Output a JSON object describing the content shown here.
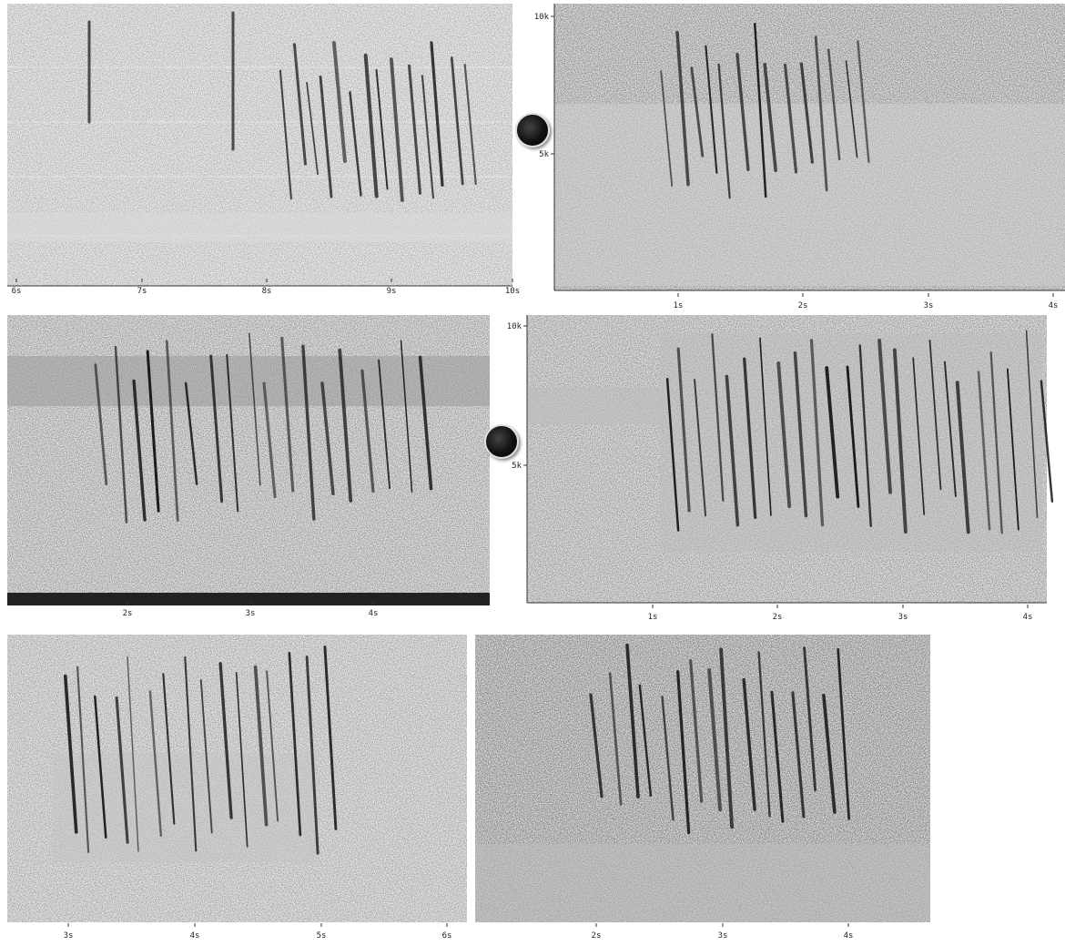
{
  "panels": [
    {
      "id": "p1",
      "x_ticks": [
        "6s",
        "7s",
        "8s",
        "9s",
        "10s"
      ],
      "y_ticks": []
    },
    {
      "id": "p2",
      "x_ticks": [
        "1s",
        "2s",
        "3s",
        "4s"
      ],
      "y_ticks": [
        "10k",
        "5k"
      ]
    },
    {
      "id": "p3",
      "x_ticks": [
        "2s",
        "3s",
        "4s"
      ],
      "y_ticks": []
    },
    {
      "id": "p4",
      "x_ticks": [
        "1s",
        "2s",
        "3s",
        "4s"
      ],
      "y_ticks": [
        "10k",
        "5k"
      ]
    },
    {
      "id": "p5",
      "x_ticks": [
        "3s",
        "4s",
        "5s",
        "6s"
      ],
      "y_ticks": []
    },
    {
      "id": "p6",
      "x_ticks": [
        "2s",
        "3s",
        "4s"
      ],
      "y_ticks": []
    }
  ],
  "icons": {
    "play": "play-icon"
  }
}
